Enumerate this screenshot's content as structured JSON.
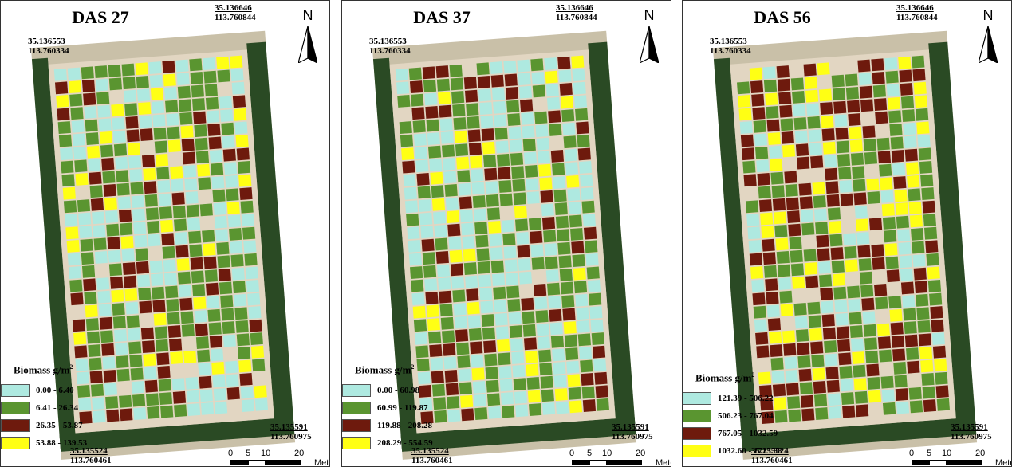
{
  "legend_title": "Biomass g/m",
  "legend_unit_sup": "2",
  "colors": {
    "class1": "#aee9e0",
    "class2": "#5a9530",
    "class3": "#6e1a0d",
    "class4": "#ffff14",
    "bare": "#e2d6c2",
    "trees": "#2a4a24",
    "field": "#c9c0a8"
  },
  "scale": {
    "ticks": [
      "0",
      "5",
      "10",
      "20"
    ],
    "unit": "Meters"
  },
  "north_label": "N",
  "panels": [
    {
      "title": "DAS 27",
      "corners": {
        "top_right": {
          "lat": "35.136646",
          "lon": "113.760844"
        },
        "top_left": {
          "lat": "35.136553",
          "lon": "113.760334"
        },
        "bottom_right": {
          "lat": "35.135591",
          "lon": "113.760975"
        },
        "bottom_left": {
          "lat": "35.135524",
          "lon": "113.760461"
        }
      },
      "legend": [
        "0.00 - 6.40",
        "6.41 - 26.34",
        "26.35 - 53.87",
        "53.88 - 139.53"
      ],
      "class_weights": [
        0.34,
        0.38,
        0.17,
        0.11
      ]
    },
    {
      "title": "DAS 37",
      "corners": {
        "top_right": {
          "lat": "35.136646",
          "lon": "113.760844"
        },
        "top_left": {
          "lat": "35.136553",
          "lon": "113.760334"
        },
        "bottom_right": {
          "lat": "35.135591",
          "lon": "113.760975"
        },
        "bottom_left": {
          "lat": "35.135524",
          "lon": "113.760461"
        }
      },
      "legend": [
        "0.00 - 60.98",
        "60.99 - 119.87",
        "119.88 - 208.28",
        "208.29 - 554.59"
      ],
      "class_weights": [
        0.36,
        0.38,
        0.19,
        0.07
      ]
    },
    {
      "title": "DAS 56",
      "corners": {
        "top_right": {
          "lat": "35.136646",
          "lon": "113.760844"
        },
        "top_left": {
          "lat": "35.136553",
          "lon": "113.760334"
        },
        "bottom_right": {
          "lat": "35.135591",
          "lon": "113.760975"
        },
        "bottom_left": {
          "lat": "35.135524",
          "lon": "113.760461"
        }
      },
      "legend": [
        "121.39 - 506.22",
        "506.23 - 767.04",
        "767.05 - 1032.59",
        "1032.60 - 1725.88"
      ],
      "class_weights": [
        0.14,
        0.38,
        0.3,
        0.18
      ]
    }
  ]
}
